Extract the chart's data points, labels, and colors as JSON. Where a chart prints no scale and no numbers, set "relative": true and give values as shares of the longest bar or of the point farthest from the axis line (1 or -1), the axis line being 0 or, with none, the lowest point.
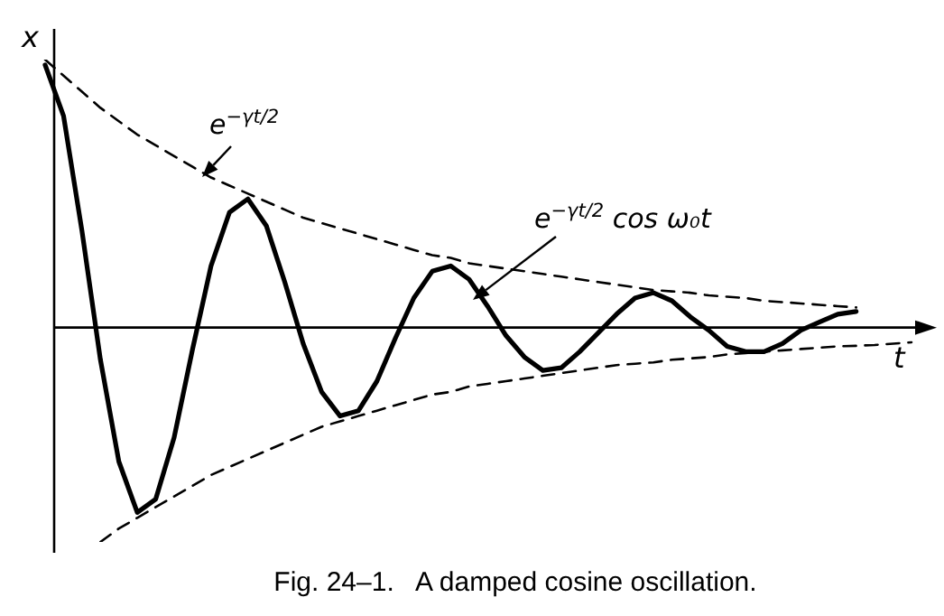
{
  "chart_data": {
    "type": "line",
    "relative": true,
    "xlabel": "t",
    "ylabel": "x",
    "tick_labels": false,
    "marker": "none",
    "categories": [
      null,
      null,
      null,
      null,
      null,
      null,
      null,
      null,
      null,
      null,
      null,
      null,
      null,
      null,
      null,
      null,
      null,
      null,
      null,
      null,
      null,
      null,
      null,
      null,
      null,
      null,
      null,
      null,
      null,
      null,
      null,
      null,
      null,
      null,
      null,
      null,
      null,
      null,
      null,
      null,
      null,
      null,
      null,
      null,
      null,
      null,
      null,
      null
    ],
    "annotations": [
      "e$^{−γt/2}$",
      "e$^{−γt/2}$ cos ω₀t",
      "Fig. 24–1.   A damped cosine oscillation."
    ],
    "series": [
      {
        "color": "#000000",
        "line_style": "dashed",
        "values": [
          1.0,
          0.94,
          0.88,
          0.82,
          0.77,
          0.72,
          0.68,
          0.64,
          0.6,
          0.56,
          0.53,
          0.5,
          0.47,
          0.44,
          0.41,
          0.39,
          0.37,
          0.35,
          0.33,
          0.31,
          0.29,
          0.27,
          0.26,
          0.24,
          0.23,
          0.22,
          0.21,
          0.2,
          0.19,
          0.18,
          0.17,
          0.16,
          0.15,
          0.14,
          0.135,
          0.13,
          0.12,
          0.115,
          0.11,
          0.1,
          0.095,
          0.09,
          0.085,
          0.08,
          0.075,
          null,
          null,
          null
        ]
      },
      {
        "color": "#000000",
        "line_style": "dashed",
        "values": [
          null,
          null,
          null,
          -0.8,
          -0.75,
          -0.71,
          -0.67,
          -0.63,
          -0.59,
          -0.55,
          -0.52,
          -0.49,
          -0.46,
          -0.43,
          -0.4,
          -0.37,
          -0.35,
          -0.33,
          -0.31,
          -0.29,
          -0.27,
          -0.25,
          -0.24,
          -0.22,
          -0.21,
          -0.2,
          -0.19,
          -0.18,
          -0.17,
          -0.16,
          -0.15,
          -0.14,
          -0.135,
          -0.13,
          -0.12,
          -0.115,
          -0.11,
          -0.1,
          -0.095,
          -0.09,
          -0.085,
          -0.08,
          -0.075,
          -0.07,
          -0.068,
          -0.065,
          -0.06,
          -0.055
        ]
      },
      {
        "color": "#000000",
        "line_style": "solid",
        "values": [
          0.98,
          0.79,
          0.36,
          -0.12,
          -0.5,
          -0.69,
          -0.64,
          -0.41,
          -0.08,
          0.23,
          0.43,
          0.48,
          0.38,
          0.17,
          -0.06,
          -0.24,
          -0.33,
          -0.31,
          -0.2,
          -0.04,
          0.11,
          0.21,
          0.23,
          0.18,
          0.08,
          -0.03,
          -0.11,
          -0.16,
          -0.15,
          -0.09,
          -0.02,
          0.05,
          0.11,
          0.13,
          0.1,
          0.04,
          -0.01,
          -0.07,
          -0.09,
          -0.09,
          -0.06,
          -0.01,
          0.02,
          0.05,
          0.06,
          null,
          null,
          null
        ]
      }
    ]
  }
}
